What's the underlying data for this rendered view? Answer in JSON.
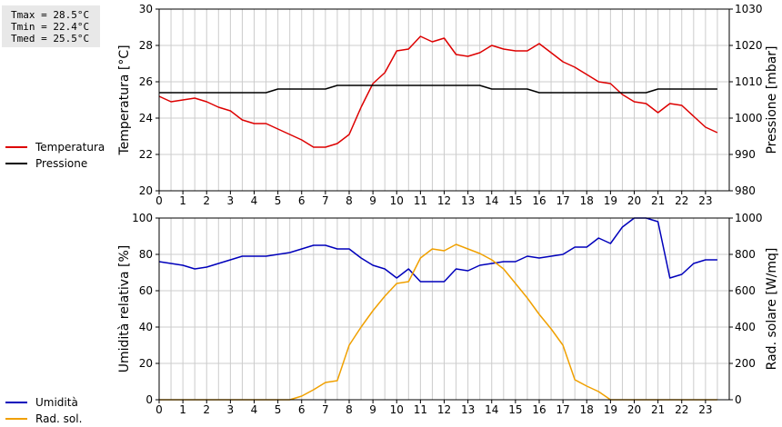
{
  "stats": {
    "tmax": "Tmax = 28.5°C",
    "tmin": "Tmin = 22.4°C",
    "tmed": "Tmed = 25.5°C"
  },
  "colors": {
    "temperature": "#dd0000",
    "pressure": "#000000",
    "humidity": "#0000bb",
    "radiation": "#f0a000",
    "grid": "#cccccc"
  },
  "chart_data": [
    {
      "type": "line",
      "ylabel": "Temperatura [°C]",
      "y2label": "Pressione [mbar]",
      "xlim": [
        0,
        24
      ],
      "ylim": [
        20,
        30
      ],
      "y2lim": [
        980,
        1030
      ],
      "xticks": [
        "0",
        "1",
        "2",
        "3",
        "4",
        "5",
        "6",
        "7",
        "8",
        "9",
        "10",
        "11",
        "12",
        "13",
        "14",
        "15",
        "16",
        "17",
        "18",
        "19",
        "20",
        "21",
        "22",
        "23"
      ],
      "yticks": [
        "20",
        "22",
        "24",
        "26",
        "28",
        "30"
      ],
      "y2ticks": [
        "980",
        "990",
        "1000",
        "1010",
        "1020",
        "1030"
      ],
      "grid": true,
      "legend": "left",
      "series": [
        {
          "name": "Temperatura",
          "axis": "left",
          "color": "#dd0000",
          "x": [
            0,
            0.5,
            1,
            1.5,
            2,
            2.5,
            3,
            3.5,
            4,
            4.5,
            5,
            5.5,
            6,
            6.5,
            7,
            7.5,
            8,
            8.5,
            9,
            9.5,
            10,
            10.5,
            11,
            11.5,
            12,
            12.5,
            13,
            13.5,
            14,
            14.5,
            15,
            15.5,
            16,
            16.5,
            17,
            17.5,
            18,
            18.5,
            19,
            19.5,
            20,
            20.5,
            21,
            21.5,
            22,
            22.5,
            23,
            23.5
          ],
          "y": [
            25.2,
            24.9,
            25.0,
            25.1,
            24.9,
            24.6,
            24.4,
            23.9,
            23.7,
            23.7,
            23.4,
            23.1,
            22.8,
            22.4,
            22.4,
            22.6,
            23.1,
            24.6,
            25.9,
            26.5,
            27.7,
            27.8,
            28.5,
            28.2,
            28.4,
            27.5,
            27.4,
            27.6,
            28.0,
            27.8,
            27.7,
            27.7,
            28.1,
            27.6,
            27.1,
            26.8,
            26.4,
            26.0,
            25.9,
            25.3,
            24.9,
            24.8,
            24.3,
            24.8,
            24.7,
            24.1,
            23.5,
            23.2
          ]
        },
        {
          "name": "Pressione",
          "axis": "right",
          "color": "#000000",
          "x": [
            0,
            1,
            2,
            3,
            4,
            4.5,
            5,
            5.5,
            6,
            6.5,
            7,
            7.5,
            8,
            8.5,
            9,
            10,
            11,
            12,
            13,
            13.5,
            14,
            15,
            15.5,
            16,
            17,
            18,
            19,
            20,
            20.5,
            21,
            22,
            23,
            23.5
          ],
          "y": [
            1007,
            1007,
            1007,
            1007,
            1007,
            1007,
            1008,
            1008,
            1008,
            1008,
            1008,
            1009,
            1009,
            1009,
            1009,
            1009,
            1009,
            1009,
            1009,
            1009,
            1008,
            1008,
            1008,
            1007,
            1007,
            1007,
            1007,
            1007,
            1007,
            1008,
            1008,
            1008,
            1008
          ]
        }
      ]
    },
    {
      "type": "line",
      "ylabel": "Umidità relativa [%]",
      "y2label": "Rad. solare [W/mq]",
      "xlim": [
        0,
        24
      ],
      "ylim": [
        0,
        100
      ],
      "y2lim": [
        0,
        1000
      ],
      "xticks": [
        "0",
        "1",
        "2",
        "3",
        "4",
        "5",
        "6",
        "7",
        "8",
        "9",
        "10",
        "11",
        "12",
        "13",
        "14",
        "15",
        "16",
        "17",
        "18",
        "19",
        "20",
        "21",
        "22",
        "23"
      ],
      "yticks": [
        "0",
        "20",
        "40",
        "60",
        "80",
        "100"
      ],
      "y2ticks": [
        "0",
        "200",
        "400",
        "600",
        "800",
        "1000"
      ],
      "grid": true,
      "legend": "left",
      "series": [
        {
          "name": "Umidità",
          "axis": "left",
          "color": "#0000bb",
          "x": [
            0,
            0.5,
            1,
            1.5,
            2,
            2.5,
            3,
            3.5,
            4,
            4.5,
            5,
            5.5,
            6,
            6.5,
            7,
            7.5,
            8,
            8.5,
            9,
            9.5,
            10,
            10.5,
            11,
            11.5,
            12,
            12.5,
            13,
            13.5,
            14,
            14.5,
            15,
            15.5,
            16,
            16.5,
            17,
            17.5,
            18,
            18.5,
            19,
            19.5,
            20,
            20.5,
            21,
            21.5,
            22,
            22.5,
            23,
            23.5
          ],
          "y": [
            76,
            75,
            74,
            72,
            73,
            75,
            77,
            79,
            79,
            79,
            80,
            81,
            83,
            85,
            85,
            83,
            83,
            78,
            74,
            72,
            67,
            72,
            65,
            65,
            65,
            72,
            71,
            74,
            75,
            76,
            76,
            79,
            78,
            79,
            80,
            84,
            84,
            89,
            86,
            95,
            100,
            100,
            98,
            67,
            69,
            75,
            77,
            77
          ]
        },
        {
          "name": "Rad. sol.",
          "axis": "right",
          "color": "#f0a000",
          "x": [
            0,
            0.5,
            1,
            1.5,
            2,
            2.5,
            3,
            3.5,
            4,
            4.5,
            5,
            5.5,
            6,
            6.5,
            7,
            7.5,
            8,
            8.5,
            9,
            9.5,
            10,
            10.5,
            11,
            11.5,
            12,
            12.5,
            13,
            13.5,
            14,
            14.5,
            15,
            15.5,
            16,
            16.5,
            17,
            17.5,
            18,
            18.5,
            19,
            19.5,
            20,
            20.5,
            21,
            21.5,
            22,
            22.5,
            23,
            23.5
          ],
          "y": [
            0,
            0,
            0,
            0,
            0,
            0,
            0,
            0,
            0,
            0,
            0,
            0,
            20,
            55,
            95,
            105,
            300,
            400,
            490,
            570,
            640,
            650,
            780,
            830,
            820,
            855,
            830,
            805,
            770,
            720,
            640,
            560,
            470,
            390,
            300,
            110,
            75,
            45,
            0,
            0,
            0,
            0,
            0,
            0,
            0,
            0,
            0,
            0
          ]
        }
      ]
    }
  ]
}
